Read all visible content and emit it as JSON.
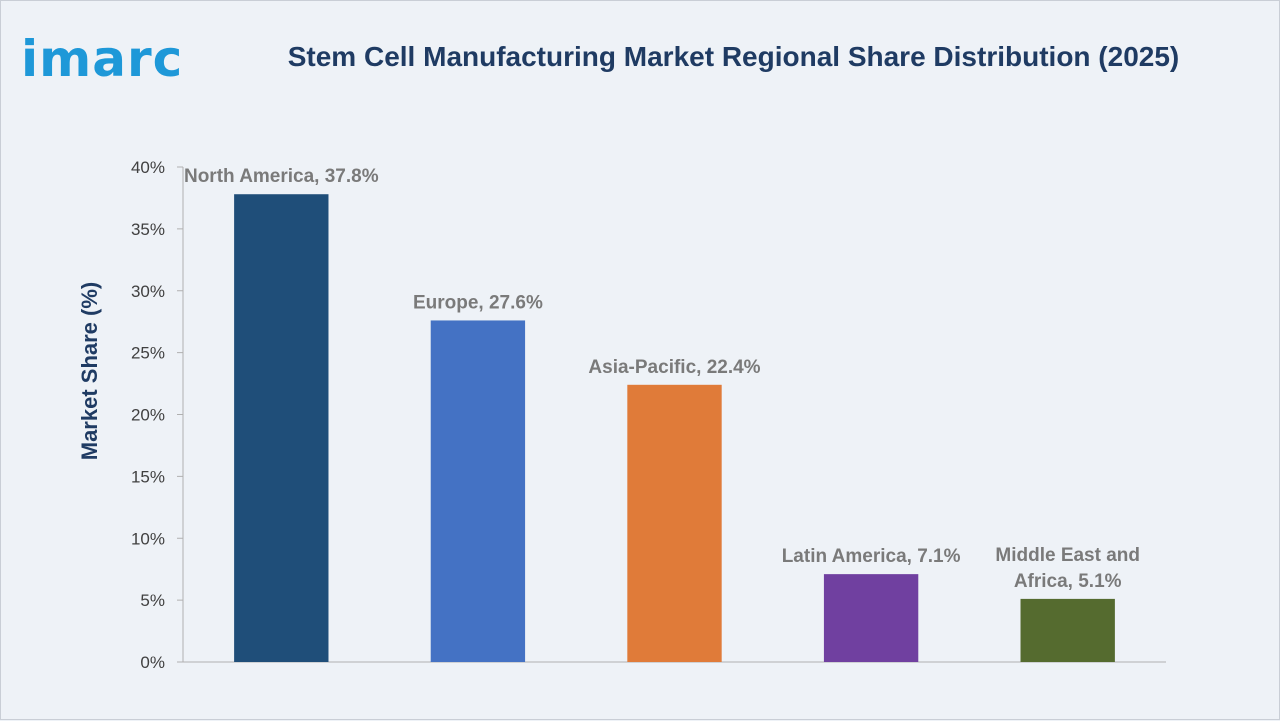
{
  "logo": {
    "text": "imarc",
    "color": "#1e98d8"
  },
  "header": {
    "title": "Stem Cell Manufacturing Market Regional Share Distribution (2025)"
  },
  "chart_data": {
    "type": "bar",
    "title": "Stem Cell Manufacturing Market Regional Share Distribution (2025)",
    "xlabel": "",
    "ylabel": "Market Share (%)",
    "ylim": [
      0,
      40
    ],
    "yticks": [
      "0%",
      "5%",
      "10%",
      "15%",
      "20%",
      "25%",
      "30%",
      "35%",
      "40%"
    ],
    "grid": false,
    "legend": "none",
    "categories": [
      "North America",
      "Europe",
      "Asia-Pacific",
      "Latin America",
      "Middle East and Africa"
    ],
    "values": [
      37.8,
      27.6,
      22.4,
      7.1,
      5.1
    ],
    "labels": [
      [
        "North America, 37.8%"
      ],
      [
        "Europe, 27.6%"
      ],
      [
        "Asia-Pacific, 22.4%"
      ],
      [
        "Latin America, 7.1%"
      ],
      [
        "Middle East and",
        "Africa, 5.1%"
      ]
    ],
    "colors": [
      "#1f4e79",
      "#4472c4",
      "#e07b39",
      "#7040a0",
      "#556b2f"
    ]
  }
}
